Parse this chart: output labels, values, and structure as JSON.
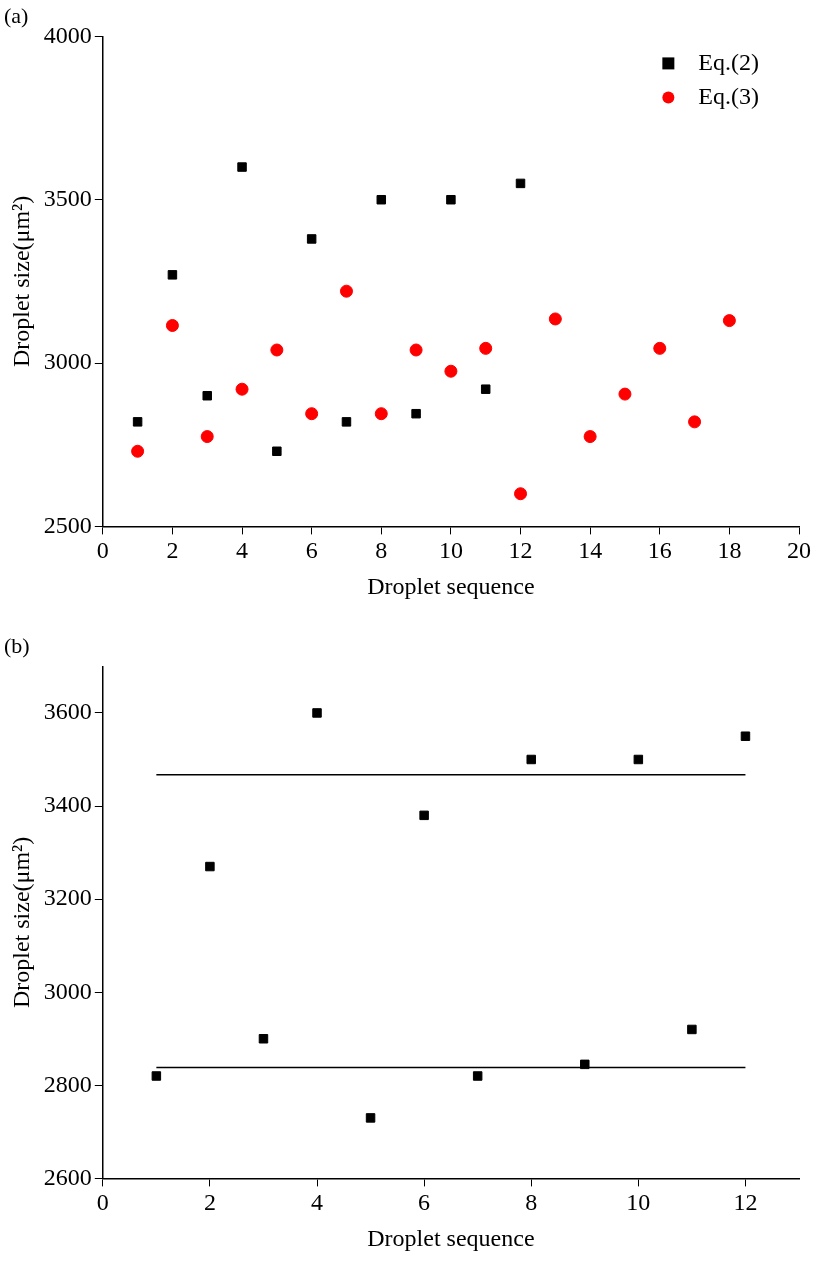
{
  "chart_data": [
    {
      "type": "scatter",
      "title": "(a)",
      "xlabel": "Droplet sequence",
      "ylabel": "Droplet size(μm²)",
      "xlim": [
        0,
        20
      ],
      "xticks": [
        0,
        2,
        4,
        6,
        8,
        10,
        12,
        14,
        16,
        18,
        20
      ],
      "ylim": [
        2500,
        4000
      ],
      "yticks": [
        2500,
        3000,
        3500,
        4000
      ],
      "grid": false,
      "legend": "top right",
      "series": [
        {
          "name": "Eq.(2)",
          "color": "#000000",
          "marker": "square",
          "x": [
            1,
            2,
            3,
            4,
            5,
            6,
            7,
            8,
            9,
            10,
            11,
            12
          ],
          "values": [
            2820,
            3270,
            2900,
            3600,
            2730,
            3380,
            2820,
            3500,
            2845,
            3500,
            2920,
            3550
          ]
        },
        {
          "name": "Eq.(3)",
          "color": "#ff0000",
          "marker": "circle",
          "x": [
            1,
            2,
            3,
            4,
            5,
            6,
            7,
            8,
            9,
            10,
            11,
            12,
            13,
            14,
            15,
            16,
            17,
            18
          ],
          "values": [
            2730,
            3115,
            2775,
            2920,
            3040,
            2845,
            3220,
            2845,
            3040,
            2975,
            3045,
            2600,
            3135,
            2775,
            2905,
            3045,
            2820,
            3130
          ]
        }
      ]
    },
    {
      "type": "scatter",
      "title": "(b)",
      "xlabel": "Droplet sequence",
      "ylabel": "Droplet size(μm²)",
      "xlim": [
        0,
        13
      ],
      "xticks": [
        0,
        2,
        4,
        6,
        8,
        10,
        12
      ],
      "ylim": [
        2600,
        3700
      ],
      "yticks": [
        2600,
        2800,
        3000,
        3200,
        3400,
        3600
      ],
      "grid": false,
      "legend": false,
      "series": [
        {
          "color": "#000000",
          "marker": "square",
          "x": [
            1,
            2,
            3,
            4,
            5,
            6,
            7,
            8,
            9,
            10,
            11,
            12
          ],
          "values": [
            2820,
            3270,
            2900,
            3600,
            2730,
            3380,
            2820,
            3500,
            2845,
            3500,
            2920,
            3550
          ]
        },
        {
          "type": "line",
          "color": "#000000",
          "marker": "none",
          "line_style": "solid",
          "x": [
            1,
            12
          ],
          "values": [
            3467,
            3467
          ]
        },
        {
          "type": "line",
          "color": "#000000",
          "marker": "none",
          "line_style": "solid",
          "x": [
            1,
            12
          ],
          "values": [
            2838,
            2838
          ]
        }
      ]
    }
  ]
}
